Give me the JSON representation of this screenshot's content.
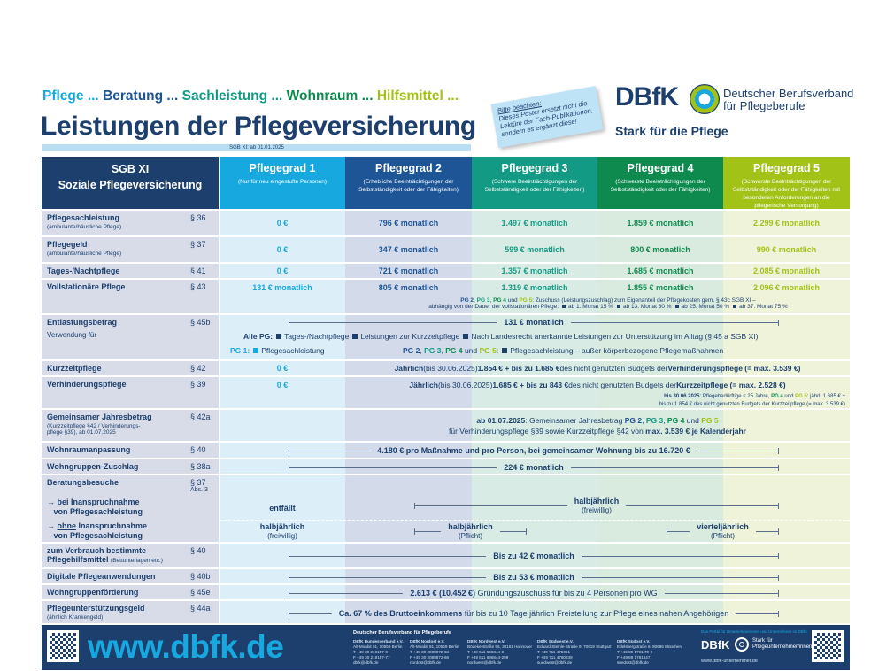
{
  "tagline": [
    "Pflege ...",
    "Beratung ...",
    "Sachleistung ...",
    "Wohnraum ...",
    "Hilfsmittel ..."
  ],
  "title": "Leistungen der Pflegeversicherung",
  "subtitle": "SGB XI: ab 01.01.2025",
  "note": {
    "head": "Bitte beachten:",
    "body": "Dieses Poster ersetzt nicht die Lektüre der Fach-Publikationen, sondern es ergänzt diese!"
  },
  "logo": {
    "mark": "DBfK",
    "name": "Deutscher Berufsverband für Pflegeberufe",
    "claim": "Stark für die Pflege"
  },
  "colors": {
    "pg1": "#17a8e0",
    "pg2": "#1d5597",
    "pg3": "#139a84",
    "pg4": "#0e8a4f",
    "pg5": "#a3c218",
    "navy": "#1c3f6e"
  },
  "header": {
    "left": [
      "SGB XI",
      "Soziale Pflegeversicherung"
    ],
    "pg": [
      {
        "title": "Pflegegrad 1",
        "sub": "(Nur für neu eingestufte Personen)"
      },
      {
        "title": "Pflegegrad 2",
        "sub": "(Erhebliche Beeinträchtigungen der Selbstständigkeit oder der Fähigkeiten)"
      },
      {
        "title": "Pflegegrad 3",
        "sub": "(Schwere Beeinträchtigungen der Selbstständigkeit oder der Fähigkeiten)"
      },
      {
        "title": "Pflegegrad 4",
        "sub": "(Schwerste Beeinträchtigungen der Selbstständigkeit oder der Fähigkeiten)"
      },
      {
        "title": "Pflegegrad 5",
        "sub": "(Schwerste Beeinträchtigungen der Selbstständigkeit oder der Fähigkeiten mit besonderen Anforderungen an die pflegerische Versorgung)"
      }
    ]
  },
  "rows": {
    "sach": {
      "label": "Pflegesachleistung",
      "sub": "(ambulante/häusliche Pflege)",
      "par": "§ 36",
      "values": [
        "0 €",
        "796 € monatlich",
        "1.497 € monatlich",
        "1.859 € monatlich",
        "2.299 € monatlich"
      ]
    },
    "geld": {
      "label": "Pflegegeld",
      "sub": "(ambulante/häusliche Pflege)",
      "par": "§ 37",
      "values": [
        "0 €",
        "347 € monatlich",
        "599 € monatlich",
        "800 € monatlich",
        "990 € monatlich"
      ]
    },
    "tages": {
      "label": "Tages-/Nachtpflege",
      "par": "§ 41",
      "values": [
        "0 €",
        "721 € monatlich",
        "1.357 € monatlich",
        "1.685 € monatlich",
        "2.085 € monatlich"
      ]
    },
    "voll": {
      "label": "Vollstationäre Pflege",
      "par": "§ 43",
      "values": [
        "131 € monatlich",
        "805 € monatlich",
        "1.319 € monatlich",
        "1.855 € monatlich",
        "2.096 € monatlich"
      ],
      "note1": [
        "PG 2",
        ", ",
        "PG 3",
        ", ",
        "PG 4",
        " und ",
        "PG 5",
        ": Zuschuss (Leistungszuschlag) zum Eigenanteil der Pflegekosten gem. § 43c SGB XI –"
      ],
      "note2": [
        "abhängig von der Dauer der vollstationären Pflege:",
        "ab 1. Monat 15 %",
        "ab 13. Monat 30 %",
        "ab 25. Monat 50 %",
        "ab 37. Monat 75 %"
      ]
    },
    "entl": {
      "label": "Entlastungsbetrag",
      "sub": "Verwendung für",
      "par": "§ 45b",
      "value": "131 € monatlich",
      "alle": [
        "Alle PG:",
        "Tages-/Nachtpflege",
        "Leistungen zur Kurzzeitpflege",
        "Nach Landesrecht anerkannte Leistungen zur Unterstützung im Alltag (§ 45 a SGB XI)"
      ],
      "pg1": [
        "PG 1:",
        "Pflegesachleistung"
      ],
      "pg25": [
        "PG 2",
        ", ",
        "PG 3",
        ", ",
        "PG 4",
        " und ",
        "PG 5",
        ":",
        "Pflegesachleistung – außer körperbezogene Pflegemaßnahmen"
      ]
    },
    "kurz": {
      "label": "Kurzzeitpflege",
      "par": "§ 42",
      "pg1": "0 €",
      "text": [
        "Jährlich",
        " (bis 30.06.2025) ",
        "1.854 € + bis zu 1.685 €",
        " des nicht genutzten Budgets der ",
        "Verhinderungspflege (= max. 3.539 €)"
      ]
    },
    "verh": {
      "label": "Verhinderungspflege",
      "par": "§ 39",
      "pg1": "0 €",
      "text": [
        "Jährlich",
        " (bis 30.06.2025) ",
        "1.685 € + bis zu 843 €",
        " des nicht genutzten Budgets der ",
        "Kurzzeitpflege (= max. 2.528 €)"
      ],
      "note": [
        "bis 30.06.2025",
        ": Pflegebedürftige < 25 Jahre, ",
        "PG 4",
        " und ",
        "PG 5",
        ": jährl. 1.685 € +",
        "bis zu 1.854 € des nicht genutzten Budgets der Kurzzeitpflege (= max. 3.539 €)"
      ]
    },
    "jahres": {
      "label": "Gemeinsamer Jahresbetrag",
      "sub": "(Kurzzeitpflege §42 / Verhinderungs-pflege §39), ab 01.07.2025",
      "par": "§ 42a",
      "line1": [
        "ab 01.07.2025",
        ": Gemeinsamer Jahresbetrag ",
        "PG 2",
        ", ",
        "PG 3",
        ", ",
        "PG 4",
        " und ",
        "PG 5"
      ],
      "line2": [
        "für Verhinderungspflege §39 sowie Kurzzeitpflege §42 von ",
        "max. 3.539 € je Kalenderjahr"
      ]
    },
    "wohnraum": {
      "label": "Wohnraumanpassung",
      "par": "§ 40",
      "value": "4.180 € pro Maßnahme und pro Person, bei gemeinsamer Wohnung bis zu 16.720 €"
    },
    "wgzuschlag": {
      "label": "Wohngruppen-Zuschlag",
      "par": "§ 38a",
      "value": "224 € monatlich"
    },
    "beratung": {
      "label": "Beratungsbesuche",
      "par": "§ 37",
      "par2": "Abs. 3",
      "mit": {
        "label": "bei Inanspruchnahme",
        "label2": "von Pflegesachleistung",
        "pg1": "entfällt",
        "value": "halbjährlich",
        "note": "(freiwillig)"
      },
      "ohne": {
        "label_u": "ohne",
        "label": " Inanspruchnahme",
        "label2": "von Pflegesachleistung",
        "pg1": "halbjährlich",
        "pg1note": "(freiwillig)",
        "pg23": "halbjährlich",
        "pg23note": "(Pflicht)",
        "pg45": "vierteljährlich",
        "pg45note": "(Pflicht)"
      }
    },
    "verbrauch": {
      "label": "zum Verbrauch bestimmte",
      "label2": "Pflegehilfsmittel",
      "sub": "(Bettunterlagen etc.)",
      "par": "§ 40",
      "value": "Bis zu 42 € monatlich"
    },
    "digital": {
      "label": "Digitale Pflegeanwendungen",
      "par": "§ 40b",
      "value": "Bis zu 53 € monatlich"
    },
    "wgfoerd": {
      "label": "Wohngruppenförderung",
      "par": "§ 45e",
      "value_b": "2.613 € (10.452 €)",
      "value": " Gründungszuschuss für bis zu 4 Personen pro WG"
    },
    "unterst": {
      "label": "Pflegeunterstützungsgeld",
      "sub": "(ähnlich Krankengeld)",
      "par": "§ 44a",
      "value_b": "Ca. 67 % des Bruttoeinkommens",
      "value": " für bis zu 10 Tage jährlich Freistellung zur Pflege eines nahen Angehörigen"
    }
  },
  "footer": {
    "url": "www.dbfk.de",
    "org": "Deutscher Berufsverband für Pflegeberufe",
    "offices": [
      {
        "name": "DBfK Bundesverband e.V.",
        "lines": [
          "Alt-Moabit 91, 10559 Berlin",
          "T +49 30 219157-0",
          "F +49 30 219157-77",
          "dbfk@dbfk.de"
        ]
      },
      {
        "name": "DBfK Nordost e.V.",
        "lines": [
          "Alt-Moabit 91, 10559 Berlin",
          "T +49 30 2088872-63",
          "F +49 30 2088872-66",
          "nordost@dbfk.de"
        ]
      },
      {
        "name": "DBfK Nordwest e.V.",
        "lines": [
          "Bödekerstraße 56, 30161 Hannover",
          "T +49 511 696844-0",
          "F +49 511 696844-299",
          "nordwest@dbfk.de"
        ]
      },
      {
        "name": "DBfK Südwest e.V.",
        "lines": [
          "Eduard-Steinle-Straße 9, 70619 Stuttgart",
          "T +49 711 475061",
          "F +49 711 4780239",
          "suedwest@dbfk.de"
        ]
      },
      {
        "name": "DBfK Südost e.V.",
        "lines": [
          "Edelsbergstraße 6, 80686 München",
          "T +49 89 1791 70-0",
          "F +49 89 1781647",
          "suedost@dbfk.de"
        ]
      }
    ],
    "portal": "Das Portal für Unternehmerinnen und Unternehmer im DBfK",
    "portal_mark": "DBfK",
    "portal_claim": "Stark für Pflegeunternehmer/innen",
    "portal_url": "www.dbfk-unternehmer.de"
  }
}
